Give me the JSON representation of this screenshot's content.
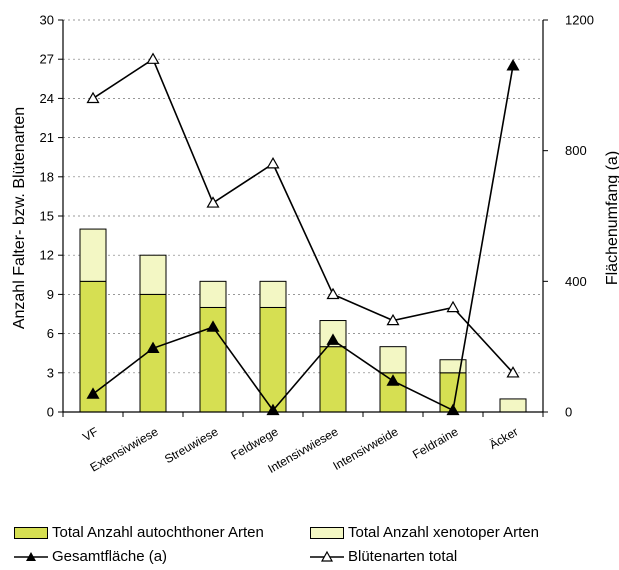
{
  "colors": {
    "autochthon": "#d6df52",
    "xenotop": "#f3f7c4",
    "line": "#000000"
  },
  "axes": {
    "left_title": "Anzahl Falter- bzw. Blütenarten",
    "right_title": "Flächenumfang (a)",
    "left_ticks": [
      "0",
      "3",
      "6",
      "9",
      "12",
      "15",
      "18",
      "21",
      "24",
      "27",
      "30"
    ],
    "right_ticks": [
      "0",
      "400",
      "800",
      "1200"
    ]
  },
  "legend": {
    "autochthon": "Total Anzahl autochthoner Arten",
    "xenotop": "Total Anzahl xenotoper Arten",
    "gesamtflaeche": "Gesamtfläche (a)",
    "bluetenarten": "Blütenarten total"
  },
  "chart_data": {
    "type": "bar",
    "categories": [
      "VF",
      "Extensivwiese",
      "Streuwiese",
      "Feldwege",
      "Intensivwiesee",
      "Intensivweide",
      "Feldraine",
      "Äcker"
    ],
    "ylim": [
      0,
      30
    ],
    "y2lim": [
      0,
      1200
    ],
    "left_ticks": [
      0,
      3,
      6,
      9,
      12,
      15,
      18,
      21,
      24,
      27,
      30
    ],
    "right_ticks": [
      0,
      400,
      800,
      1200
    ],
    "grid": true,
    "legend_position": "bottom",
    "series": [
      {
        "name": "Total Anzahl autochthoner Arten",
        "kind": "bar",
        "stack": "a",
        "axis": "left",
        "values": [
          10,
          9,
          8,
          8,
          5,
          3,
          3,
          0
        ]
      },
      {
        "name": "Total Anzahl xenotoper Arten",
        "kind": "bar",
        "stack": "a",
        "axis": "left",
        "values": [
          4,
          3,
          2,
          2,
          2,
          2,
          1,
          1
        ]
      },
      {
        "name": "Gesamtfläche (a)",
        "kind": "line",
        "marker": "filled-triangle",
        "axis": "right",
        "values": [
          55,
          195,
          260,
          5,
          220,
          95,
          5,
          1060
        ]
      },
      {
        "name": "Blütenarten total",
        "kind": "line",
        "marker": "open-triangle",
        "axis": "left",
        "values": [
          24,
          27,
          16,
          19,
          9,
          7,
          8,
          3
        ]
      }
    ]
  }
}
